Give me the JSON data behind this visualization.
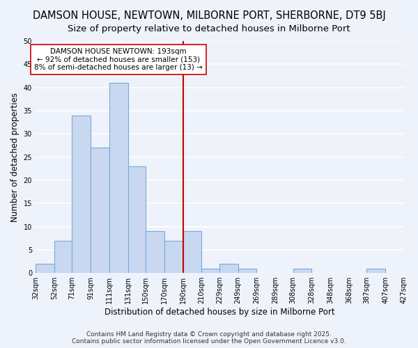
{
  "title": "DAMSON HOUSE, NEWTOWN, MILBORNE PORT, SHERBORNE, DT9 5BJ",
  "subtitle": "Size of property relative to detached houses in Milborne Port",
  "xlabel": "Distribution of detached houses by size in Milborne Port",
  "ylabel": "Number of detached properties",
  "bar_edges": [
    32,
    52,
    71,
    91,
    111,
    131,
    150,
    170,
    190,
    210,
    229,
    249,
    269,
    289,
    308,
    328,
    348,
    368,
    387,
    407,
    427
  ],
  "bar_heights": [
    2,
    7,
    34,
    27,
    41,
    23,
    9,
    7,
    9,
    1,
    2,
    1,
    0,
    0,
    1,
    0,
    0,
    0,
    1,
    0
  ],
  "bar_color": "#c8d8f0",
  "bar_edge_color": "#7aa8d8",
  "vline_x": 190,
  "vline_color": "#cc0000",
  "annotation_text": "DAMSON HOUSE NEWTOWN: 193sqm\n← 92% of detached houses are smaller (153)\n8% of semi-detached houses are larger (13) →",
  "annotation_box_color": "#ffffff",
  "annotation_box_edge": "#cc0000",
  "ylim": [
    0,
    50
  ],
  "tick_labels": [
    "32sqm",
    "52sqm",
    "71sqm",
    "91sqm",
    "111sqm",
    "131sqm",
    "150sqm",
    "170sqm",
    "190sqm",
    "210sqm",
    "229sqm",
    "249sqm",
    "269sqm",
    "289sqm",
    "308sqm",
    "328sqm",
    "348sqm",
    "368sqm",
    "387sqm",
    "407sqm",
    "427sqm"
  ],
  "footer": "Contains HM Land Registry data © Crown copyright and database right 2025.\nContains public sector information licensed under the Open Government Licence v3.0.",
  "background_color": "#eef2fb",
  "grid_color": "#ffffff",
  "title_fontsize": 10.5,
  "subtitle_fontsize": 9.5,
  "axis_label_fontsize": 8.5,
  "tick_fontsize": 7,
  "footer_fontsize": 6.5,
  "annotation_fontsize": 7.5
}
